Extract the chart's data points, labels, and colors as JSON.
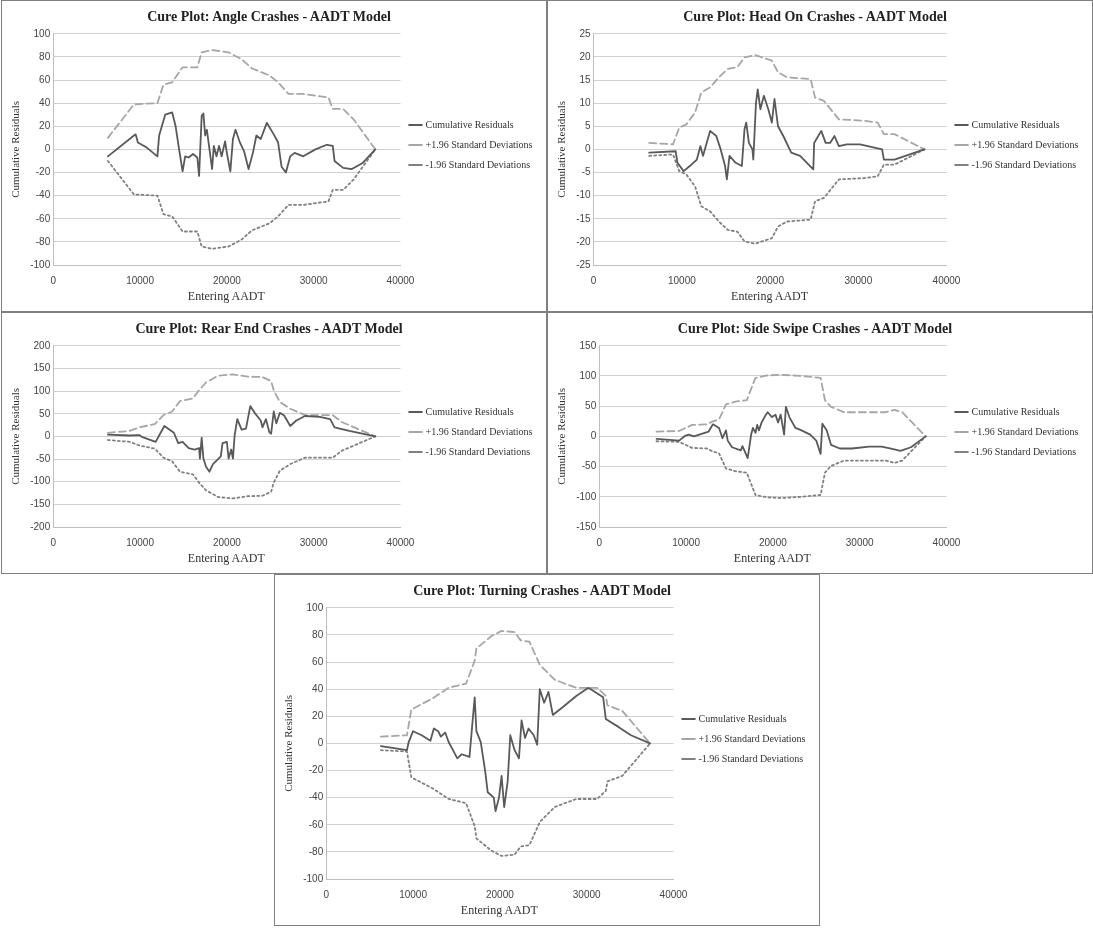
{
  "chart_data": [
    {
      "type": "line",
      "title": "Cure Plot: Angle Crashes - AADT Model",
      "xlabel": "Entering AADT",
      "ylabel": "Cumulative Residuals",
      "xlim": [
        0,
        40000
      ],
      "xticks": [
        0,
        10000,
        20000,
        30000,
        40000
      ],
      "ylim": [
        -100,
        100
      ],
      "yticks": [
        -100,
        -80,
        -60,
        -40,
        -20,
        0,
        20,
        40,
        60,
        80,
        100
      ],
      "grid": "y",
      "legend": "right",
      "marker": "none",
      "series": [
        {
          "name": "Cumulative Residuals",
          "color": "#595959",
          "line_style": "solid",
          "x": [
            6300,
            9300,
            9500,
            9750,
            10200,
            10700,
            12000,
            12200,
            12900,
            13700,
            14100,
            14500,
            14900,
            15200,
            15600,
            16100,
            16600,
            16800,
            17100,
            17300,
            17500,
            17700,
            18000,
            18300,
            18500,
            18800,
            19100,
            19400,
            19800,
            20000,
            20400,
            20700,
            21000,
            21500,
            22000,
            22500,
            23000,
            23400,
            23900,
            24600,
            25400,
            25900,
            26300,
            26800,
            27300,
            27800,
            28800,
            30200,
            31500,
            32200,
            32400,
            33400,
            34400,
            35600,
            37100
          ],
          "values": [
            -6,
            12,
            13,
            6,
            4,
            2,
            -6,
            12,
            30,
            32,
            20,
            0,
            -19,
            -6,
            -7,
            -4,
            -7,
            -23,
            29,
            31,
            12,
            17,
            0,
            -17,
            3,
            -6,
            3,
            -6,
            7,
            -3,
            -19,
            9,
            17,
            6,
            -2,
            -17,
            -3,
            12,
            9,
            23,
            13,
            6,
            -15,
            -20,
            -6,
            -3,
            -6,
            0,
            4,
            3,
            -10,
            -16,
            -17,
            -12,
            0
          ]
        },
        {
          "name": "+1.96 Standard Deviations",
          "color": "#a6a6a6",
          "line_style": "dashed",
          "x": [
            6300,
            9300,
            12000,
            12700,
            13700,
            14900,
            16600,
            17100,
            18300,
            20200,
            21700,
            22900,
            24900,
            25900,
            27100,
            28800,
            31700,
            32200,
            33400,
            34600,
            37100
          ],
          "values": [
            10,
            39,
            40,
            56,
            58,
            71,
            71,
            84,
            86,
            84,
            78,
            70,
            64,
            58,
            48,
            48,
            45,
            35,
            35,
            26,
            0
          ]
        },
        {
          "name": "-1.96 Standard Deviations",
          "color": "#808080",
          "line_style": "dotted",
          "x": [
            6300,
            9300,
            12000,
            12700,
            13700,
            14900,
            16600,
            17100,
            18300,
            20200,
            21700,
            22900,
            24900,
            25900,
            27100,
            28800,
            31700,
            32200,
            33400,
            34600,
            37100
          ],
          "values": [
            -10,
            -39,
            -40,
            -56,
            -58,
            -71,
            -71,
            -84,
            -86,
            -84,
            -78,
            -70,
            -64,
            -58,
            -48,
            -48,
            -45,
            -35,
            -35,
            -26,
            0
          ]
        }
      ]
    },
    {
      "type": "line",
      "title": "Cure Plot: Head On Crashes - AADT Model",
      "xlabel": "Entering AADT",
      "ylabel": "Cumulative Residuals",
      "xlim": [
        0,
        40000
      ],
      "xticks": [
        0,
        10000,
        20000,
        30000,
        40000
      ],
      "ylim": [
        -25,
        25
      ],
      "yticks": [
        -25,
        -20,
        -15,
        -10,
        -5,
        0,
        5,
        10,
        15,
        20,
        25
      ],
      "grid": "y",
      "legend": "right",
      "marker": "none",
      "series": [
        {
          "name": "Cumulative Residuals",
          "color": "#595959",
          "line_style": "solid",
          "x": [
            6300,
            9300,
            9500,
            10200,
            10900,
            11700,
            12100,
            12400,
            13200,
            13900,
            14400,
            14900,
            15100,
            15400,
            16100,
            16800,
            17100,
            17300,
            17600,
            18000,
            18100,
            18400,
            18600,
            18900,
            19300,
            19800,
            20200,
            20500,
            20900,
            21500,
            22400,
            23400,
            24900,
            25000,
            25800,
            26300,
            26800,
            27300,
            27800,
            28700,
            30200,
            32700,
            32900,
            34100,
            37500
          ],
          "values": [
            -0.7,
            -0.4,
            -2.9,
            -4.7,
            -3.6,
            -2.2,
            0.7,
            -1.4,
            4,
            2.9,
            0,
            -3.6,
            -6.5,
            -1.4,
            -2.9,
            -3.6,
            4.3,
            5.8,
            1.4,
            0,
            -2.2,
            10,
            13,
            8.7,
            11.6,
            8.7,
            5.8,
            10.9,
            5,
            2.9,
            -0.7,
            -1.4,
            -4.3,
            1.4,
            4,
            1.4,
            1.4,
            2.9,
            0.7,
            1.1,
            1.1,
            0,
            -2.2,
            -2.2,
            0
          ]
        },
        {
          "name": "+1.96 Standard Deviations",
          "color": "#a6a6a6",
          "line_style": "dashed",
          "x": [
            6300,
            9000,
            9700,
            10500,
            11500,
            12200,
            13200,
            14200,
            15200,
            16300,
            17100,
            18300,
            20200,
            20900,
            21900,
            24600,
            25100,
            26100,
            27800,
            30700,
            32200,
            32900,
            34100,
            37500
          ],
          "values": [
            1.4,
            1.1,
            4.7,
            5.4,
            8,
            12.3,
            13.4,
            15.6,
            17.4,
            17.8,
            19.9,
            20.4,
            19.2,
            16.7,
            15.6,
            15.2,
            11.2,
            10.5,
            6.5,
            6.2,
            5.8,
            3.3,
            3.3,
            0
          ]
        },
        {
          "name": "-1.96 Standard Deviations",
          "color": "#808080",
          "line_style": "dotted",
          "x": [
            6300,
            9000,
            9700,
            10500,
            11500,
            12200,
            13200,
            14200,
            15200,
            16300,
            17100,
            18300,
            20200,
            20900,
            21900,
            24600,
            25100,
            26100,
            27800,
            30700,
            32200,
            32900,
            34100,
            37500
          ],
          "values": [
            -1.4,
            -1.1,
            -4.7,
            -5.4,
            -8,
            -12.3,
            -13.4,
            -15.6,
            -17.4,
            -17.8,
            -19.9,
            -20.4,
            -19.2,
            -16.7,
            -15.6,
            -15.2,
            -11.2,
            -10.5,
            -6.5,
            -6.2,
            -5.8,
            -3.3,
            -3.3,
            0
          ]
        }
      ]
    },
    {
      "type": "line",
      "title": "Cure Plot: Rear End Crashes - AADT Model",
      "xlabel": "Entering AADT",
      "ylabel": "Cumulative Residuals",
      "xlim": [
        0,
        40000
      ],
      "xticks": [
        0,
        10000,
        20000,
        30000,
        40000
      ],
      "ylim": [
        -200,
        200
      ],
      "yticks": [
        -200,
        -150,
        -100,
        -50,
        0,
        50,
        100,
        150,
        200
      ],
      "grid": "y",
      "legend": "right",
      "marker": "none",
      "series": [
        {
          "name": "Cumulative Residuals",
          "color": "#595959",
          "line_style": "solid",
          "x": [
            6300,
            8800,
            9900,
            10200,
            11800,
            12800,
            13900,
            14400,
            14900,
            15600,
            16300,
            16800,
            16900,
            17100,
            17300,
            17600,
            18000,
            18400,
            18900,
            19300,
            19500,
            20000,
            20200,
            20500,
            20700,
            20900,
            21200,
            21700,
            22200,
            22700,
            23200,
            23900,
            24100,
            24500,
            24900,
            25100,
            25400,
            25700,
            26100,
            26600,
            27300,
            28000,
            29000,
            30700,
            31900,
            32400,
            34100,
            37100
          ],
          "values": [
            4,
            2,
            3,
            -1,
            -12,
            23,
            8,
            -15,
            -12,
            -26,
            -29,
            -26,
            -49,
            -3,
            -49,
            -67,
            -78,
            -61,
            -52,
            -44,
            -15,
            -12,
            -49,
            -29,
            -49,
            3,
            38,
            15,
            17,
            67,
            52,
            35,
            20,
            38,
            9,
            6,
            55,
            29,
            52,
            46,
            23,
            35,
            45,
            43,
            38,
            20,
            12,
            0
          ]
        },
        {
          "name": "+1.96 Standard Deviations",
          "color": "#a6a6a6",
          "line_style": "dashed",
          "x": [
            6300,
            8800,
            9900,
            11700,
            12700,
            13700,
            14600,
            16100,
            16800,
            17600,
            19000,
            20700,
            22400,
            24100,
            25100,
            25400,
            26100,
            27300,
            29000,
            32200,
            33200,
            37100
          ],
          "values": [
            8,
            12,
            20,
            27,
            47,
            55,
            78,
            84,
            102,
            119,
            134,
            137,
            132,
            131,
            122,
            102,
            76,
            61,
            47,
            47,
            32,
            0
          ]
        },
        {
          "name": "-1.96 Standard Deviations",
          "color": "#808080",
          "line_style": "dotted",
          "x": [
            6300,
            8800,
            9900,
            11700,
            12700,
            13700,
            14600,
            16100,
            16800,
            17600,
            19000,
            20700,
            22400,
            24100,
            25100,
            25400,
            26100,
            27300,
            29000,
            32200,
            33200,
            37100
          ],
          "values": [
            -8,
            -12,
            -20,
            -27,
            -47,
            -55,
            -78,
            -84,
            -102,
            -119,
            -134,
            -137,
            -132,
            -131,
            -122,
            -102,
            -76,
            -61,
            -47,
            -47,
            -32,
            0
          ]
        }
      ]
    },
    {
      "type": "line",
      "title": "Cure Plot: Side Swipe Crashes - AADT Model",
      "xlabel": "Entering AADT",
      "ylabel": "Cumulative Residuals",
      "xlim": [
        0,
        40000
      ],
      "xticks": [
        0,
        10000,
        20000,
        30000,
        40000
      ],
      "ylim": [
        -150,
        150
      ],
      "yticks": [
        -150,
        -100,
        -50,
        0,
        50,
        100,
        150
      ],
      "grid": "y",
      "legend": "right",
      "marker": "none",
      "series": [
        {
          "name": "Cumulative Residuals",
          "color": "#595959",
          "line_style": "solid",
          "x": [
            6600,
            9200,
            9900,
            10300,
            10900,
            12600,
            13100,
            13800,
            14200,
            14600,
            14800,
            15300,
            16300,
            16500,
            17100,
            17500,
            17700,
            18000,
            18200,
            18400,
            18700,
            19200,
            19400,
            19900,
            20300,
            20600,
            20900,
            21300,
            21500,
            21900,
            22600,
            23300,
            24300,
            25000,
            25500,
            25700,
            26200,
            26700,
            27700,
            29100,
            31100,
            32500,
            33500,
            34700,
            35900,
            37600
          ],
          "values": [
            -4,
            -7,
            1,
            3,
            0,
            8,
            20,
            14,
            -3,
            10,
            -7,
            -18,
            -23,
            -16,
            -36,
            3,
            14,
            6,
            19,
            10,
            23,
            36,
            40,
            32,
            36,
            23,
            36,
            3,
            49,
            32,
            14,
            10,
            3,
            -7,
            -29,
            21,
            10,
            -14,
            -20,
            -20,
            -17,
            -17,
            -20,
            -24,
            -18,
            0
          ]
        },
        {
          "name": "+1.96 Standard Deviations",
          "color": "#a6a6a6",
          "line_style": "dashed",
          "x": [
            6600,
            9200,
            10700,
            12400,
            13100,
            13800,
            14600,
            15800,
            17000,
            17400,
            18000,
            19400,
            21100,
            23300,
            25500,
            26000,
            26700,
            28200,
            31100,
            33000,
            34000,
            34900,
            37600
          ],
          "values": [
            8,
            9,
            19,
            20,
            25,
            28,
            53,
            58,
            60,
            75,
            97,
            101,
            102,
            100,
            97,
            60,
            49,
            40,
            40,
            40,
            44,
            40,
            0
          ]
        },
        {
          "name": "-1.96 Standard Deviations",
          "color": "#808080",
          "line_style": "dotted",
          "x": [
            6600,
            9200,
            10700,
            12400,
            13100,
            13800,
            14600,
            15800,
            17000,
            17400,
            18000,
            19400,
            21100,
            23300,
            25500,
            26000,
            26700,
            28200,
            31100,
            33000,
            34000,
            34900,
            37600
          ],
          "values": [
            -8,
            -9,
            -19,
            -20,
            -25,
            -28,
            -53,
            -58,
            -60,
            -75,
            -97,
            -101,
            -102,
            -100,
            -97,
            -60,
            -49,
            -40,
            -40,
            -40,
            -44,
            -40,
            0
          ]
        }
      ]
    },
    {
      "type": "line",
      "title": "Cure Plot: Turning Crashes - AADT Model",
      "xlabel": "Entering AADT",
      "ylabel": "Cumulative Residuals",
      "xlim": [
        0,
        40000
      ],
      "xticks": [
        0,
        10000,
        20000,
        30000,
        40000
      ],
      "ylim": [
        -100,
        100
      ],
      "yticks": [
        -100,
        -80,
        -60,
        -40,
        -20,
        0,
        20,
        40,
        60,
        80,
        100
      ],
      "grid": "y",
      "legend": "right",
      "marker": "none",
      "series": [
        {
          "name": "Cumulative Residuals",
          "color": "#595959",
          "line_style": "solid",
          "x": [
            6300,
            9300,
            9500,
            10000,
            11000,
            12000,
            12400,
            12900,
            13200,
            13700,
            14100,
            14600,
            15100,
            15600,
            16500,
            16800,
            17100,
            17300,
            17800,
            18300,
            18600,
            19300,
            19500,
            19900,
            20200,
            20500,
            20900,
            21200,
            21700,
            22200,
            22500,
            22900,
            23300,
            23900,
            24300,
            24600,
            25100,
            25600,
            26100,
            27300,
            28800,
            30200,
            31900,
            32200,
            33700,
            35100,
            37300
          ],
          "values": [
            -2,
            -5,
            1,
            9,
            6,
            2,
            11,
            9,
            5,
            8,
            1,
            -5,
            -11,
            -8,
            -10,
            12,
            34,
            9,
            1,
            -20,
            -36,
            -40,
            -50,
            -40,
            -24,
            -47,
            -28,
            6,
            -5,
            -11,
            17,
            4,
            11,
            6,
            -1,
            40,
            30,
            38,
            21,
            27,
            35,
            41,
            34,
            18,
            12,
            6,
            0
          ]
        },
        {
          "name": "+1.96 Standard Deviations",
          "color": "#a6a6a6",
          "line_style": "dashed",
          "x": [
            6300,
            9300,
            9800,
            12200,
            14100,
            16100,
            17100,
            17300,
            19000,
            20200,
            21700,
            22400,
            23400,
            24600,
            26300,
            28800,
            31200,
            32200,
            32400,
            34100,
            37300
          ],
          "values": [
            5,
            6,
            25,
            33,
            41,
            44,
            61,
            70,
            79,
            83,
            82,
            76,
            75,
            58,
            47,
            41,
            41,
            35,
            28,
            24,
            0
          ]
        },
        {
          "name": "-1.96 Standard Deviations",
          "color": "#808080",
          "line_style": "dotted",
          "x": [
            6300,
            9300,
            9800,
            12200,
            14100,
            16100,
            17100,
            17300,
            19000,
            20200,
            21700,
            22400,
            23400,
            24600,
            26300,
            28800,
            31200,
            32200,
            32400,
            34100,
            37300
          ],
          "values": [
            -5,
            -6,
            -25,
            -33,
            -41,
            -44,
            -61,
            -70,
            -79,
            -83,
            -82,
            -76,
            -75,
            -58,
            -47,
            -41,
            -41,
            -35,
            -28,
            -24,
            0
          ]
        }
      ]
    }
  ]
}
